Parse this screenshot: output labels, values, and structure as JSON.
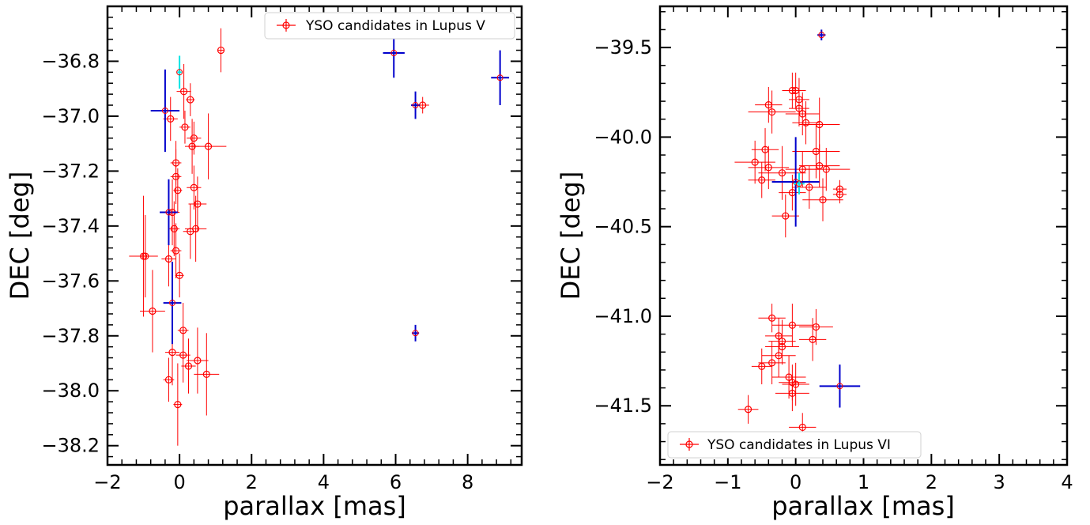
{
  "colors": {
    "candidate": "#ff0000",
    "blue": "#0000cc",
    "cyan": "#00e5e5",
    "axis": "#000000"
  },
  "chart_data": [
    {
      "type": "scatter",
      "xlabel": "parallax [mas]",
      "ylabel": "DEC [deg]",
      "xlim": [
        -2,
        9.5
      ],
      "ylim": [
        -38.27,
        -36.6
      ],
      "xticks": [
        -2,
        0,
        2,
        4,
        6,
        8
      ],
      "yticks": [
        -38.2,
        -38.0,
        -37.8,
        -37.6,
        -37.4,
        -37.2,
        -37.0,
        -36.8
      ],
      "xtick_labels": [
        "−2",
        "0",
        "2",
        "4",
        "6",
        "8"
      ],
      "ytick_labels": [
        "−38.2",
        "−38.0",
        "−37.8",
        "−37.6",
        "−37.4",
        "−37.2",
        "−37.0",
        "−36.8"
      ],
      "legend": {
        "label": "YSO candidates in Lupus V",
        "position": "upper right"
      },
      "series": [
        {
          "name": "YSO candidates in Lupus V",
          "color": "#ff0000",
          "points": [
            {
              "x": 1.15,
              "y": -36.76,
              "xerr": 0.1,
              "yerr": 0.08
            },
            {
              "x": 0.12,
              "y": -36.91,
              "xerr": 0.2,
              "yerr": 0.1
            },
            {
              "x": 0.3,
              "y": -36.94,
              "xerr": 0.12,
              "yerr": 0.06
            },
            {
              "x": 6.75,
              "y": -36.96,
              "xerr": 0.18,
              "yerr": 0.03
            },
            {
              "x": -0.25,
              "y": -37.01,
              "xerr": 0.2,
              "yerr": 0.08
            },
            {
              "x": 0.15,
              "y": -37.04,
              "xerr": 0.15,
              "yerr": 0.06
            },
            {
              "x": 0.4,
              "y": -37.08,
              "xerr": 0.2,
              "yerr": 0.06
            },
            {
              "x": 0.35,
              "y": -37.11,
              "xerr": 0.2,
              "yerr": 0.1
            },
            {
              "x": 0.8,
              "y": -37.11,
              "xerr": 0.5,
              "yerr": 0.12
            },
            {
              "x": -0.1,
              "y": -37.17,
              "xerr": 0.15,
              "yerr": 0.08
            },
            {
              "x": -0.1,
              "y": -37.22,
              "xerr": 0.15,
              "yerr": 0.1
            },
            {
              "x": 0.4,
              "y": -37.26,
              "xerr": 0.2,
              "yerr": 0.08
            },
            {
              "x": -0.05,
              "y": -37.27,
              "xerr": 0.12,
              "yerr": 0.08
            },
            {
              "x": 0.5,
              "y": -37.32,
              "xerr": 0.25,
              "yerr": 0.1
            },
            {
              "x": -0.2,
              "y": -37.35,
              "xerr": 0.2,
              "yerr": 0.12
            },
            {
              "x": -0.15,
              "y": -37.41,
              "xerr": 0.15,
              "yerr": 0.1
            },
            {
              "x": 0.45,
              "y": -37.41,
              "xerr": 0.3,
              "yerr": 0.12
            },
            {
              "x": 0.3,
              "y": -37.42,
              "xerr": 0.2,
              "yerr": 0.1
            },
            {
              "x": -0.1,
              "y": -37.49,
              "xerr": 0.15,
              "yerr": 0.1
            },
            {
              "x": -1.0,
              "y": -37.51,
              "xerr": 0.4,
              "yerr": 0.22
            },
            {
              "x": -0.95,
              "y": -37.51,
              "xerr": 0.2,
              "yerr": 0.15
            },
            {
              "x": -0.3,
              "y": -37.52,
              "xerr": 0.2,
              "yerr": 0.1
            },
            {
              "x": 0.0,
              "y": -37.58,
              "xerr": 0.12,
              "yerr": 0.08
            },
            {
              "x": -0.75,
              "y": -37.71,
              "xerr": 0.35,
              "yerr": 0.15
            },
            {
              "x": 0.1,
              "y": -37.78,
              "xerr": 0.15,
              "yerr": 0.1
            },
            {
              "x": -0.2,
              "y": -37.86,
              "xerr": 0.2,
              "yerr": 0.12
            },
            {
              "x": 0.1,
              "y": -37.87,
              "xerr": 0.2,
              "yerr": 0.1
            },
            {
              "x": 0.5,
              "y": -37.89,
              "xerr": 0.3,
              "yerr": 0.12
            },
            {
              "x": 0.25,
              "y": -37.91,
              "xerr": 0.2,
              "yerr": 0.1
            },
            {
              "x": 0.75,
              "y": -37.94,
              "xerr": 0.35,
              "yerr": 0.15
            },
            {
              "x": -0.3,
              "y": -37.96,
              "xerr": 0.15,
              "yerr": 0.08
            },
            {
              "x": -0.05,
              "y": -38.05,
              "xerr": 0.12,
              "yerr": 0.15
            }
          ]
        },
        {
          "name": "",
          "color": "#0000cc",
          "points": [
            {
              "x": -0.4,
              "y": -36.98,
              "xerr": 0.4,
              "yerr": 0.15
            },
            {
              "x": -0.3,
              "y": -37.35,
              "xerr": 0.25,
              "yerr": 0.12
            },
            {
              "x": -0.2,
              "y": -37.68,
              "xerr": 0.25,
              "yerr": 0.15
            },
            {
              "x": 5.95,
              "y": -36.77,
              "xerr": 0.3,
              "yerr": 0.09
            },
            {
              "x": 6.55,
              "y": -36.96,
              "xerr": 0.12,
              "yerr": 0.05
            },
            {
              "x": 6.55,
              "y": -37.79,
              "xerr": 0.1,
              "yerr": 0.03
            },
            {
              "x": 8.9,
              "y": -36.86,
              "xerr": 0.25,
              "yerr": 0.1
            }
          ]
        },
        {
          "name": "",
          "color": "#00e5e5",
          "points": [
            {
              "x": 0.0,
              "y": -36.84,
              "xerr": 0.06,
              "yerr": 0.06
            }
          ]
        }
      ]
    },
    {
      "type": "scatter",
      "xlabel": "parallax [mas]",
      "ylabel": "DEC [deg]",
      "xlim": [
        -2,
        4
      ],
      "ylim": [
        -41.83,
        -39.27
      ],
      "xticks": [
        -2,
        -1,
        0,
        1,
        2,
        3,
        4
      ],
      "yticks": [
        -41.5,
        -41.0,
        -40.5,
        -40.0,
        -39.5
      ],
      "xtick_labels": [
        "−2",
        "−1",
        "0",
        "1",
        "2",
        "3",
        "4"
      ],
      "ytick_labels": [
        "−41.5",
        "−41.0",
        "−40.5",
        "−40.0",
        "−39.5"
      ],
      "legend": {
        "label": "YSO candidates in Lupus VI",
        "position": "lower left"
      },
      "series": [
        {
          "name": "YSO candidates in Lupus VI",
          "color": "#ff0000",
          "points": [
            {
              "x": -0.05,
              "y": -39.74,
              "xerr": 0.15,
              "yerr": 0.1
            },
            {
              "x": 0.0,
              "y": -39.74,
              "xerr": 0.15,
              "yerr": 0.1
            },
            {
              "x": 0.05,
              "y": -39.79,
              "xerr": 0.15,
              "yerr": 0.12
            },
            {
              "x": 0.05,
              "y": -39.84,
              "xerr": 0.15,
              "yerr": 0.1
            },
            {
              "x": -0.4,
              "y": -39.82,
              "xerr": 0.2,
              "yerr": 0.1
            },
            {
              "x": 0.1,
              "y": -39.87,
              "xerr": 0.25,
              "yerr": 0.12
            },
            {
              "x": -0.35,
              "y": -39.86,
              "xerr": 0.35,
              "yerr": 0.12
            },
            {
              "x": 0.15,
              "y": -39.92,
              "xerr": 0.2,
              "yerr": 0.12
            },
            {
              "x": 0.35,
              "y": -39.93,
              "xerr": 0.3,
              "yerr": 0.15
            },
            {
              "x": -0.45,
              "y": -40.07,
              "xerr": 0.2,
              "yerr": 0.12
            },
            {
              "x": 0.3,
              "y": -40.08,
              "xerr": 0.35,
              "yerr": 0.15
            },
            {
              "x": -0.6,
              "y": -40.14,
              "xerr": 0.3,
              "yerr": 0.12
            },
            {
              "x": -0.4,
              "y": -40.17,
              "xerr": 0.3,
              "yerr": 0.12
            },
            {
              "x": 0.1,
              "y": -40.18,
              "xerr": 0.25,
              "yerr": 0.1
            },
            {
              "x": 0.35,
              "y": -40.16,
              "xerr": 0.3,
              "yerr": 0.12
            },
            {
              "x": 0.45,
              "y": -40.18,
              "xerr": 0.35,
              "yerr": 0.12
            },
            {
              "x": -0.2,
              "y": -40.2,
              "xerr": 0.35,
              "yerr": 0.15
            },
            {
              "x": -0.5,
              "y": -40.24,
              "xerr": 0.2,
              "yerr": 0.1
            },
            {
              "x": 0.2,
              "y": -40.28,
              "xerr": 0.25,
              "yerr": 0.12
            },
            {
              "x": -0.05,
              "y": -40.31,
              "xerr": 0.2,
              "yerr": 0.1
            },
            {
              "x": 0.65,
              "y": -40.29,
              "xerr": 0.1,
              "yerr": 0.05
            },
            {
              "x": 0.65,
              "y": -40.32,
              "xerr": 0.1,
              "yerr": 0.05
            },
            {
              "x": 0.4,
              "y": -40.35,
              "xerr": 0.3,
              "yerr": 0.12
            },
            {
              "x": -0.15,
              "y": -40.44,
              "xerr": 0.2,
              "yerr": 0.12
            },
            {
              "x": -0.35,
              "y": -41.01,
              "xerr": 0.2,
              "yerr": 0.08
            },
            {
              "x": -0.05,
              "y": -41.05,
              "xerr": 0.3,
              "yerr": 0.12
            },
            {
              "x": 0.3,
              "y": -41.06,
              "xerr": 0.25,
              "yerr": 0.1
            },
            {
              "x": -0.25,
              "y": -41.11,
              "xerr": 0.2,
              "yerr": 0.1
            },
            {
              "x": -0.2,
              "y": -41.14,
              "xerr": 0.2,
              "yerr": 0.12
            },
            {
              "x": 0.25,
              "y": -41.13,
              "xerr": 0.2,
              "yerr": 0.12
            },
            {
              "x": -0.2,
              "y": -41.17,
              "xerr": 0.25,
              "yerr": 0.1
            },
            {
              "x": -0.25,
              "y": -41.22,
              "xerr": 0.25,
              "yerr": 0.12
            },
            {
              "x": -0.35,
              "y": -41.26,
              "xerr": 0.2,
              "yerr": 0.12
            },
            {
              "x": -0.5,
              "y": -41.28,
              "xerr": 0.15,
              "yerr": 0.1
            },
            {
              "x": -0.1,
              "y": -41.34,
              "xerr": 0.25,
              "yerr": 0.12
            },
            {
              "x": -0.05,
              "y": -41.37,
              "xerr": 0.2,
              "yerr": 0.1
            },
            {
              "x": 0.0,
              "y": -41.38,
              "xerr": 0.2,
              "yerr": 0.12
            },
            {
              "x": -0.05,
              "y": -41.43,
              "xerr": 0.25,
              "yerr": 0.1
            },
            {
              "x": -0.7,
              "y": -41.52,
              "xerr": 0.15,
              "yerr": 0.08
            },
            {
              "x": 0.1,
              "y": -41.62,
              "xerr": 0.2,
              "yerr": 0.08
            }
          ]
        },
        {
          "name": "",
          "color": "#0000cc",
          "points": [
            {
              "x": 0.38,
              "y": -39.43,
              "xerr": 0.06,
              "yerr": 0.03
            },
            {
              "x": 0.0,
              "y": -40.25,
              "xerr": 0.35,
              "yerr": 0.25
            },
            {
              "x": 0.65,
              "y": -41.39,
              "xerr": 0.3,
              "yerr": 0.12
            }
          ]
        },
        {
          "name": "",
          "color": "#00e5e5",
          "points": [
            {
              "x": 0.05,
              "y": -40.26,
              "xerr": 0.08,
              "yerr": 0.06
            }
          ]
        }
      ]
    }
  ]
}
